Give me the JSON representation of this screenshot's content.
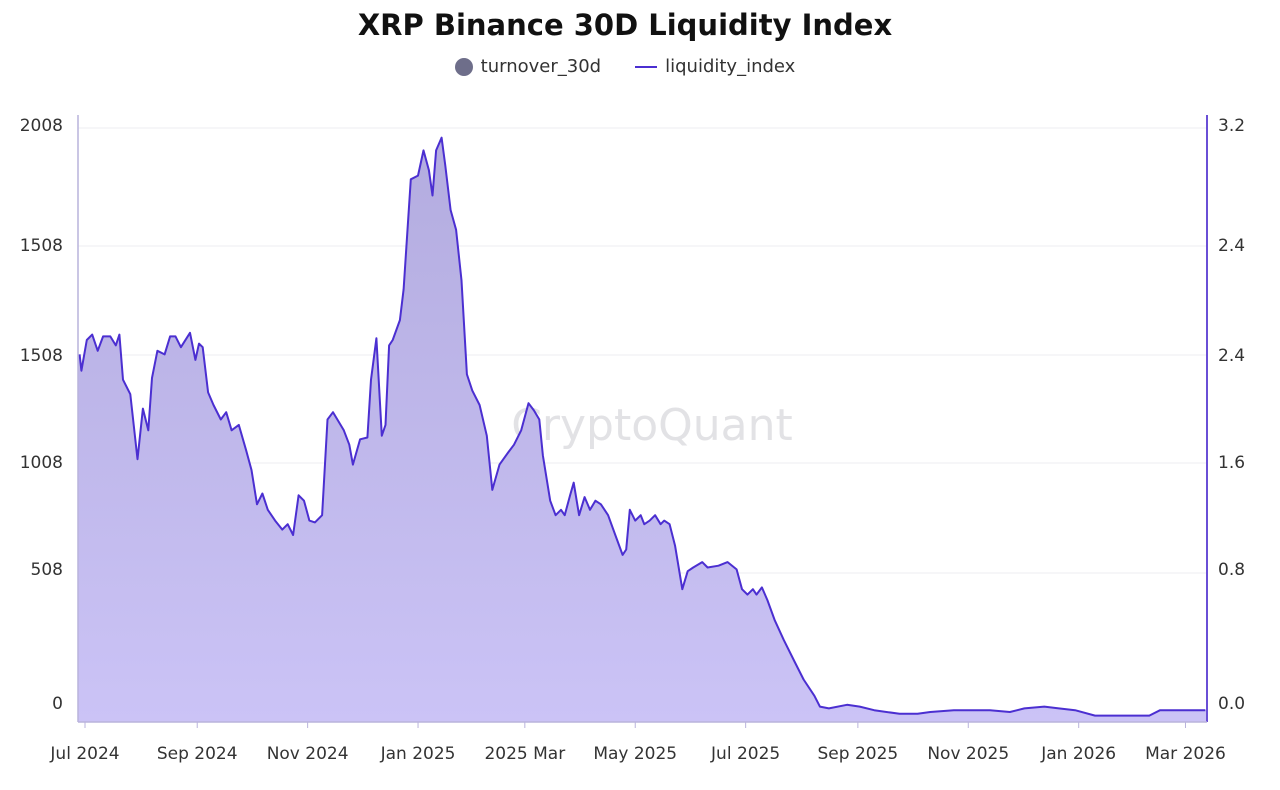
{
  "chart_data": {
    "type": "area",
    "title": "XRP Binance 30D Liquidity Index",
    "legend": {
      "placement": "top-center",
      "entries": [
        {
          "name": "turnover_30d",
          "marker": "circle",
          "color": "#6e6e8a"
        },
        {
          "name": "liquidity_index",
          "marker": "line",
          "color": "#4b2fd1"
        }
      ]
    },
    "watermark": "CryptoQuant",
    "left_axis_ticks": [
      "2008",
      "1508",
      "1508",
      "1008",
      "508",
      "0"
    ],
    "right_axis_ticks": [
      "3.2",
      "2.4",
      "2.4",
      "1.6",
      "0.8",
      "0.0"
    ],
    "x_ticks": [
      {
        "label": "Jul 2024",
        "date": "2024-07-01"
      },
      {
        "label": "Sep 2024",
        "date": "2024-09-01"
      },
      {
        "label": "Nov 2024",
        "date": "2024-11-01"
      },
      {
        "label": "Jan 2025",
        "date": "2025-01-01"
      },
      {
        "label": "2025 Mar",
        "date": "2025-03-01"
      },
      {
        "label": "May 2025",
        "date": "2025-05-01"
      },
      {
        "label": "Jul 2025",
        "date": "2025-07-01"
      },
      {
        "label": "Sep 2025",
        "date": "2025-09-01"
      },
      {
        "label": "Nov 2025",
        "date": "2025-11-01"
      },
      {
        "label": "Jan 2026",
        "date": "2026-01-01"
      },
      {
        "label": "Mar 2026",
        "date": "2026-03-01"
      }
    ],
    "xlim": [
      "2024-06-28",
      "2026-03-12"
    ],
    "ylim_right": [
      0,
      3.2
    ],
    "grid": "horizontal",
    "colors": {
      "line": "#4b2fd1",
      "fill_top": "#b3acdf",
      "fill_bottom": "#cbc3f6",
      "right_axis": "#6a4fd6"
    },
    "series": [
      {
        "name": "liquidity_index",
        "points": [
          [
            "2024-06-28",
            1.93
          ],
          [
            "2024-06-29",
            1.84
          ],
          [
            "2024-07-02",
            2.01
          ],
          [
            "2024-07-05",
            2.04
          ],
          [
            "2024-07-08",
            1.95
          ],
          [
            "2024-07-11",
            2.03
          ],
          [
            "2024-07-15",
            2.03
          ],
          [
            "2024-07-18",
            1.98
          ],
          [
            "2024-07-20",
            2.04
          ],
          [
            "2024-07-22",
            1.79
          ],
          [
            "2024-07-26",
            1.71
          ],
          [
            "2024-07-30",
            1.35
          ],
          [
            "2024-08-02",
            1.63
          ],
          [
            "2024-08-05",
            1.51
          ],
          [
            "2024-08-07",
            1.8
          ],
          [
            "2024-08-10",
            1.95
          ],
          [
            "2024-08-14",
            1.93
          ],
          [
            "2024-08-17",
            2.03
          ],
          [
            "2024-08-20",
            2.03
          ],
          [
            "2024-08-23",
            1.97
          ],
          [
            "2024-08-28",
            2.05
          ],
          [
            "2024-08-31",
            1.9
          ],
          [
            "2024-09-02",
            1.99
          ],
          [
            "2024-09-04",
            1.97
          ],
          [
            "2024-09-07",
            1.72
          ],
          [
            "2024-09-10",
            1.65
          ],
          [
            "2024-09-14",
            1.57
          ],
          [
            "2024-09-17",
            1.61
          ],
          [
            "2024-09-20",
            1.51
          ],
          [
            "2024-09-24",
            1.54
          ],
          [
            "2024-09-28",
            1.4
          ],
          [
            "2024-10-01",
            1.29
          ],
          [
            "2024-10-04",
            1.1
          ],
          [
            "2024-10-07",
            1.16
          ],
          [
            "2024-10-10",
            1.07
          ],
          [
            "2024-10-14",
            1.01
          ],
          [
            "2024-10-18",
            0.96
          ],
          [
            "2024-10-21",
            0.99
          ],
          [
            "2024-10-24",
            0.93
          ],
          [
            "2024-10-27",
            1.15
          ],
          [
            "2024-10-30",
            1.12
          ],
          [
            "2024-11-02",
            1.01
          ],
          [
            "2024-11-05",
            1.0
          ],
          [
            "2024-11-09",
            1.04
          ],
          [
            "2024-11-12",
            1.57
          ],
          [
            "2024-11-15",
            1.61
          ],
          [
            "2024-11-21",
            1.51
          ],
          [
            "2024-11-24",
            1.43
          ],
          [
            "2024-11-26",
            1.32
          ],
          [
            "2024-11-30",
            1.46
          ],
          [
            "2024-12-04",
            1.47
          ],
          [
            "2024-12-06",
            1.79
          ],
          [
            "2024-12-09",
            2.02
          ],
          [
            "2024-12-12",
            1.48
          ],
          [
            "2024-12-14",
            1.54
          ],
          [
            "2024-12-16",
            1.98
          ],
          [
            "2024-12-18",
            2.01
          ],
          [
            "2024-12-22",
            2.12
          ],
          [
            "2024-12-24",
            2.29
          ],
          [
            "2024-12-28",
            2.9
          ],
          [
            "2025-01-01",
            2.92
          ],
          [
            "2025-01-04",
            3.06
          ],
          [
            "2025-01-07",
            2.95
          ],
          [
            "2025-01-09",
            2.81
          ],
          [
            "2025-01-11",
            3.06
          ],
          [
            "2025-01-14",
            3.13
          ],
          [
            "2025-01-16",
            2.98
          ],
          [
            "2025-01-19",
            2.73
          ],
          [
            "2025-01-22",
            2.62
          ],
          [
            "2025-01-25",
            2.34
          ],
          [
            "2025-01-28",
            1.82
          ],
          [
            "2025-01-31",
            1.73
          ],
          [
            "2025-02-04",
            1.65
          ],
          [
            "2025-02-08",
            1.48
          ],
          [
            "2025-02-11",
            1.18
          ],
          [
            "2025-02-15",
            1.32
          ],
          [
            "2025-02-20",
            1.39
          ],
          [
            "2025-02-23",
            1.43
          ],
          [
            "2025-02-27",
            1.51
          ],
          [
            "2025-03-03",
            1.66
          ],
          [
            "2025-03-06",
            1.62
          ],
          [
            "2025-03-09",
            1.57
          ],
          [
            "2025-03-11",
            1.37
          ],
          [
            "2025-03-15",
            1.12
          ],
          [
            "2025-03-18",
            1.04
          ],
          [
            "2025-03-21",
            1.07
          ],
          [
            "2025-03-23",
            1.04
          ],
          [
            "2025-03-26",
            1.15
          ],
          [
            "2025-03-28",
            1.22
          ],
          [
            "2025-03-31",
            1.04
          ],
          [
            "2025-04-03",
            1.14
          ],
          [
            "2025-04-06",
            1.07
          ],
          [
            "2025-04-09",
            1.12
          ],
          [
            "2025-04-12",
            1.1
          ],
          [
            "2025-04-16",
            1.04
          ],
          [
            "2025-04-20",
            0.93
          ],
          [
            "2025-04-24",
            0.82
          ],
          [
            "2025-04-26",
            0.85
          ],
          [
            "2025-04-28",
            1.07
          ],
          [
            "2025-05-01",
            1.01
          ],
          [
            "2025-05-04",
            1.04
          ],
          [
            "2025-05-06",
            0.99
          ],
          [
            "2025-05-09",
            1.01
          ],
          [
            "2025-05-12",
            1.04
          ],
          [
            "2025-05-15",
            0.99
          ],
          [
            "2025-05-17",
            1.01
          ],
          [
            "2025-05-20",
            0.99
          ],
          [
            "2025-05-23",
            0.87
          ],
          [
            "2025-05-27",
            0.63
          ],
          [
            "2025-05-30",
            0.73
          ],
          [
            "2025-06-02",
            0.75
          ],
          [
            "2025-06-07",
            0.78
          ],
          [
            "2025-06-10",
            0.75
          ],
          [
            "2025-06-16",
            0.76
          ],
          [
            "2025-06-21",
            0.78
          ],
          [
            "2025-06-26",
            0.74
          ],
          [
            "2025-06-29",
            0.63
          ],
          [
            "2025-07-02",
            0.6
          ],
          [
            "2025-07-05",
            0.63
          ],
          [
            "2025-07-07",
            0.6
          ],
          [
            "2025-07-10",
            0.64
          ],
          [
            "2025-07-13",
            0.57
          ],
          [
            "2025-07-17",
            0.46
          ],
          [
            "2025-07-22",
            0.35
          ],
          [
            "2025-07-28",
            0.23
          ],
          [
            "2025-08-02",
            0.13
          ],
          [
            "2025-08-08",
            0.04
          ],
          [
            "2025-08-11",
            -0.02
          ],
          [
            "2025-08-16",
            -0.03
          ],
          [
            "2025-08-26",
            -0.01
          ],
          [
            "2025-09-02",
            -0.02
          ],
          [
            "2025-09-10",
            -0.04
          ],
          [
            "2025-09-24",
            -0.06
          ],
          [
            "2025-10-04",
            -0.06
          ],
          [
            "2025-10-11",
            -0.05
          ],
          [
            "2025-10-24",
            -0.04
          ],
          [
            "2025-10-30",
            -0.04
          ],
          [
            "2025-11-13",
            -0.04
          ],
          [
            "2025-11-24",
            -0.05
          ],
          [
            "2025-12-02",
            -0.03
          ],
          [
            "2025-12-13",
            -0.02
          ],
          [
            "2025-12-21",
            -0.03
          ],
          [
            "2025-12-30",
            -0.04
          ],
          [
            "2026-01-10",
            -0.07
          ],
          [
            "2026-02-09",
            -0.07
          ],
          [
            "2026-02-15",
            -0.04
          ],
          [
            "2026-03-12",
            -0.04
          ]
        ]
      }
    ]
  }
}
